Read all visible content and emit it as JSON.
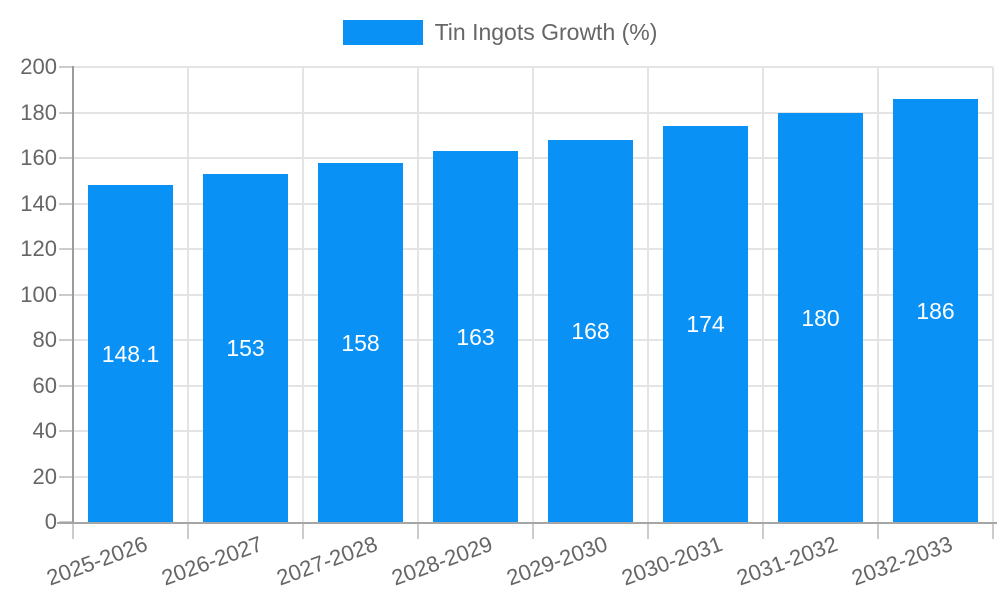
{
  "chart_data": {
    "type": "bar",
    "title": "",
    "legend_position": "top-center",
    "categories": [
      "2025-2026",
      "2026-2027",
      "2027-2028",
      "2028-2029",
      "2029-2030",
      "2030-2031",
      "2031-2032",
      "2032-2033"
    ],
    "series": [
      {
        "name": "Tin Ingots Growth (%)",
        "values": [
          148.1,
          153,
          158,
          163,
          168,
          174,
          180,
          186
        ],
        "color": "#0a91f5"
      }
    ],
    "value_labels": [
      "148.1",
      "153",
      "158",
      "163",
      "168",
      "174",
      "180",
      "186"
    ],
    "xlabel": "",
    "ylabel": "",
    "ylim": [
      0,
      200
    ],
    "ytick_step": 20,
    "yticks": [
      0,
      20,
      40,
      60,
      80,
      100,
      120,
      140,
      160,
      180,
      200
    ],
    "grid": true,
    "x_label_rotation_deg": -20,
    "colors": {
      "bar": "#0a91f5",
      "value_label": "#ffffff",
      "gridline": "#e4e4e4",
      "tick": "#cccccc",
      "y_axis_line": "#9c9c9c",
      "x_axis_line": "#a6a6a6",
      "axis_text": "#666666",
      "legend_text": "#666666",
      "background": "#ffffff"
    }
  }
}
